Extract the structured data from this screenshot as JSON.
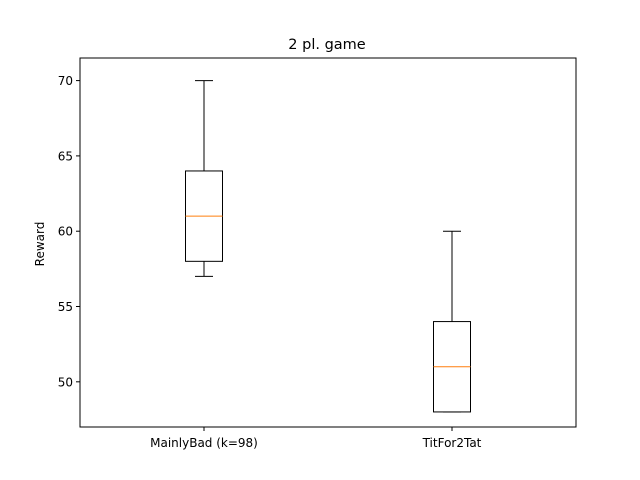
{
  "chart_data": {
    "type": "box",
    "title": "2 pl. game",
    "xlabel": "",
    "ylabel": "Reward",
    "ylim": [
      47.0,
      71.5
    ],
    "yticks": [
      50,
      55,
      60,
      65,
      70
    ],
    "grid": false,
    "categories": [
      "MainlyBad (k=98)",
      "TitFor2Tat"
    ],
    "boxes": [
      {
        "whisker_low": 57,
        "q1": 58,
        "median": 61,
        "q3": 64,
        "whisker_high": 70
      },
      {
        "whisker_low": 48,
        "q1": 48,
        "median": 51,
        "q3": 54,
        "whisker_high": 60
      }
    ],
    "colors": {
      "box": "#000000",
      "median": "#ff7f0e",
      "axes": "#000000"
    }
  }
}
